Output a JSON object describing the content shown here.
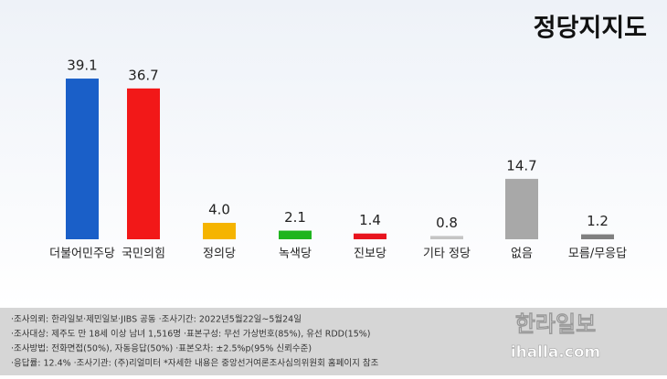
{
  "chart_data": {
    "type": "bar",
    "title": "정당지지도",
    "categories": [
      "더불어민주당",
      "국민의힘",
      "정의당",
      "녹색당",
      "진보당",
      "기타 정당",
      "없음",
      "모름/무응답"
    ],
    "values": [
      39.1,
      36.7,
      4.0,
      2.1,
      1.4,
      0.8,
      14.7,
      1.2
    ],
    "value_labels": [
      "39.1",
      "36.7",
      "4.0",
      "2.1",
      "1.4",
      "0.8",
      "14.7",
      "1.2"
    ],
    "colors": [
      "#1a5fc8",
      "#f21818",
      "#f5b400",
      "#1fb51f",
      "#e8141e",
      "#c4c4c4",
      "#a8a8a8",
      "#808080"
    ]
  },
  "footer": {
    "notes": [
      "·조사의뢰: 한라일보·제민일보·JIBS 공동  ·조사기간: 2022년5월22일~5월24일",
      "·조사대상: 제주도 만 18세 이상 남녀 1,516명  ·표본구성: 무선 가상번호(85%), 유선 RDD(15%)",
      "·조사방법: 전화면접(50%), 자동응답(50%)  ·표본오차: ±2.5%p(95% 신뢰수준)",
      "·응답률: 12.4%  ·조사기관: (주)리얼미터  *자세한 내용은 중앙선거여론조사심의위원회 홈페이지 참조"
    ],
    "logo": "한라일보",
    "site": "ihalla.com"
  }
}
